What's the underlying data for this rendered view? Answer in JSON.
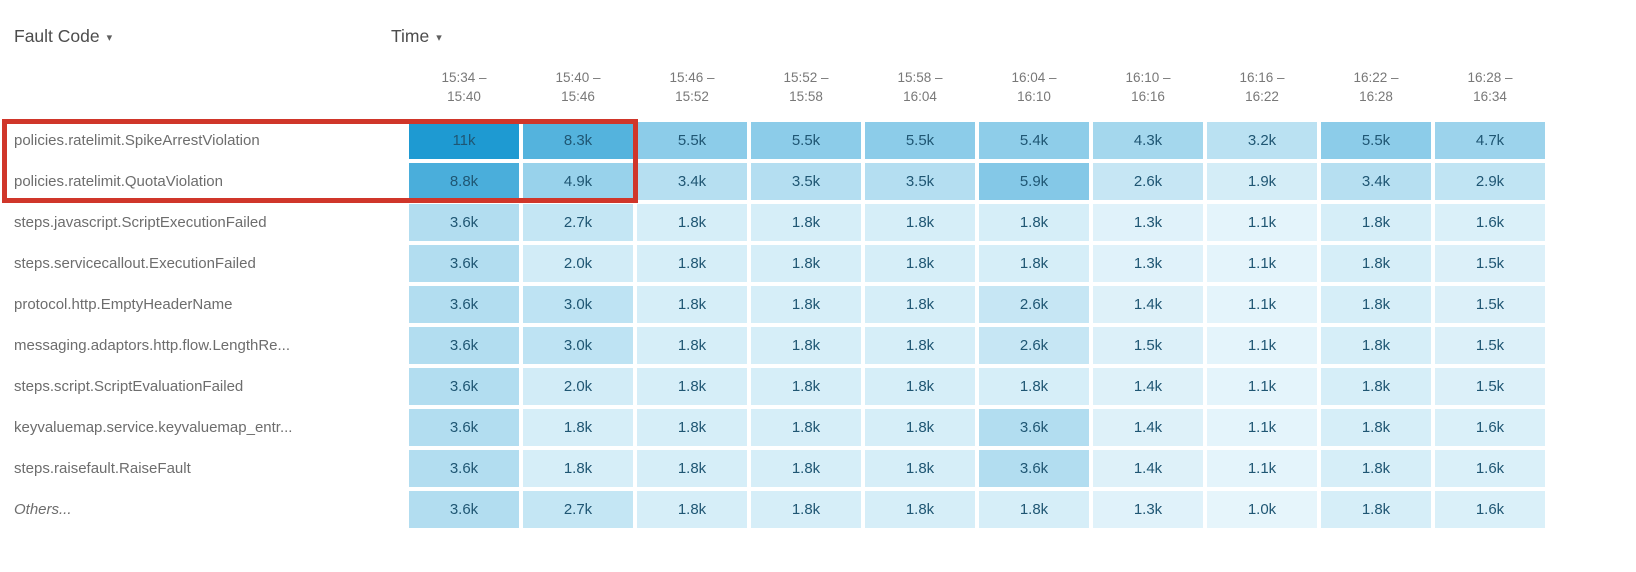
{
  "controls": {
    "fault_code_label": "Fault Code",
    "time_label": "Time",
    "dropdown_icon": "▾"
  },
  "chart_data": {
    "type": "heatmap",
    "row_dimension": "Fault Code",
    "column_dimension": "Time",
    "columns": [
      "15:34 – 15:40",
      "15:40 – 15:46",
      "15:46 – 15:52",
      "15:52 – 15:58",
      "15:58 – 16:04",
      "16:04 – 16:10",
      "16:10 – 16:16",
      "16:16 – 16:22",
      "16:22 – 16:28",
      "16:28 – 16:34"
    ],
    "rows": [
      {
        "label": "policies.ratelimit.SpikeArrestViolation",
        "values": [
          "11k",
          "8.3k",
          "5.5k",
          "5.5k",
          "5.5k",
          "5.4k",
          "4.3k",
          "3.2k",
          "5.5k",
          "4.7k"
        ]
      },
      {
        "label": "policies.ratelimit.QuotaViolation",
        "values": [
          "8.8k",
          "4.9k",
          "3.4k",
          "3.5k",
          "3.5k",
          "5.9k",
          "2.6k",
          "1.9k",
          "3.4k",
          "2.9k"
        ]
      },
      {
        "label": "steps.javascript.ScriptExecutionFailed",
        "values": [
          "3.6k",
          "2.7k",
          "1.8k",
          "1.8k",
          "1.8k",
          "1.8k",
          "1.3k",
          "1.1k",
          "1.8k",
          "1.6k"
        ]
      },
      {
        "label": "steps.servicecallout.ExecutionFailed",
        "values": [
          "3.6k",
          "2.0k",
          "1.8k",
          "1.8k",
          "1.8k",
          "1.8k",
          "1.3k",
          "1.1k",
          "1.8k",
          "1.5k"
        ]
      },
      {
        "label": "protocol.http.EmptyHeaderName",
        "values": [
          "3.6k",
          "3.0k",
          "1.8k",
          "1.8k",
          "1.8k",
          "2.6k",
          "1.4k",
          "1.1k",
          "1.8k",
          "1.5k"
        ]
      },
      {
        "label": "messaging.adaptors.http.flow.LengthRe...",
        "values": [
          "3.6k",
          "3.0k",
          "1.8k",
          "1.8k",
          "1.8k",
          "2.6k",
          "1.5k",
          "1.1k",
          "1.8k",
          "1.5k"
        ]
      },
      {
        "label": "steps.script.ScriptEvaluationFailed",
        "values": [
          "3.6k",
          "2.0k",
          "1.8k",
          "1.8k",
          "1.8k",
          "1.8k",
          "1.4k",
          "1.1k",
          "1.8k",
          "1.5k"
        ]
      },
      {
        "label": "keyvaluemap.service.keyvaluemap_entr...",
        "values": [
          "3.6k",
          "1.8k",
          "1.8k",
          "1.8k",
          "1.8k",
          "3.6k",
          "1.4k",
          "1.1k",
          "1.8k",
          "1.6k"
        ]
      },
      {
        "label": "steps.raisefault.RaiseFault",
        "values": [
          "3.6k",
          "1.8k",
          "1.8k",
          "1.8k",
          "1.8k",
          "3.6k",
          "1.4k",
          "1.1k",
          "1.8k",
          "1.6k"
        ]
      },
      {
        "label": "Others...",
        "italic": true,
        "values": [
          "3.6k",
          "2.7k",
          "1.8k",
          "1.8k",
          "1.8k",
          "1.8k",
          "1.3k",
          "1.0k",
          "1.8k",
          "1.6k"
        ]
      }
    ],
    "color_scale": {
      "min_value_k": 1.0,
      "max_value_k": 11.0,
      "min_color": "#e6f5fb",
      "max_color": "#1e9ad2"
    },
    "value_text_color": "#1f5673",
    "highlight": {
      "color": "#d0362a",
      "rows": [
        "policies.ratelimit.SpikeArrestViolation",
        "policies.ratelimit.QuotaViolation"
      ],
      "columns": [
        "15:34 – 15:40",
        "15:40 – 15:46"
      ],
      "includes_row_labels": true
    }
  }
}
